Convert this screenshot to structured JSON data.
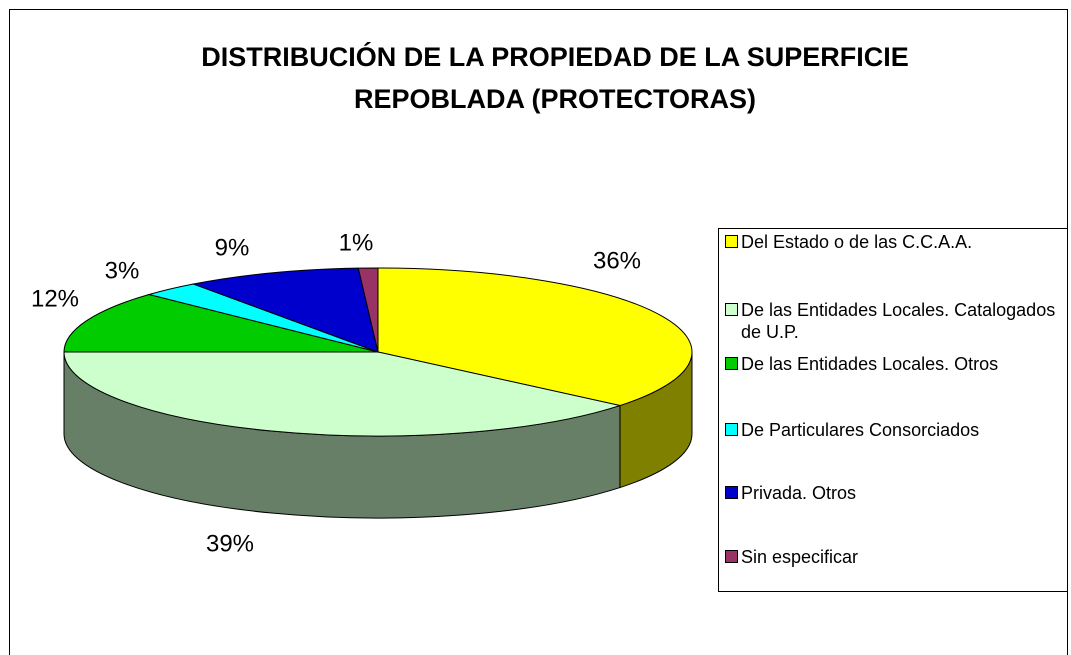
{
  "chart_data": {
    "type": "pie",
    "title": "DISTRIBUCIÓN DE LA PROPIEDAD DE LA SUPERFICIE REPOBLADA (PROTECTORAS)",
    "categories": [
      "Del Estado o de las C.C.A.A.",
      "De las Entidades Locales. Catalogados de U.P.",
      "De las Entidades Locales. Otros",
      "De Particulares Consorciados",
      "Privada. Otros",
      "Sin especificar"
    ],
    "values": [
      36,
      39,
      12,
      3,
      9,
      1
    ],
    "value_labels": [
      "36%",
      "39%",
      "12%",
      "3%",
      "9%",
      "1%"
    ],
    "colors": [
      "#ffff00",
      "#ccffcc",
      "#00cc00",
      "#00ffff",
      "#0000cc",
      "#993366"
    ]
  }
}
